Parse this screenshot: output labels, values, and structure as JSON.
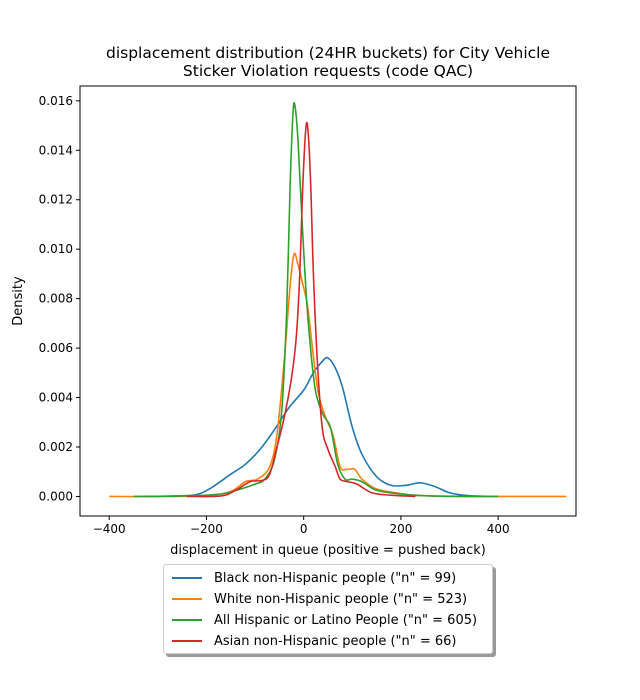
{
  "chart_data": {
    "type": "line",
    "title_line1": "displacement distribution (24HR buckets) for City Vehicle",
    "title_line2": "Sticker Violation requests (code QAC)",
    "xlabel": "displacement in queue (positive = pushed back)",
    "ylabel": "Density",
    "xlim": [
      -460,
      560
    ],
    "ylim": [
      -0.00079,
      0.0166
    ],
    "xticks": [
      -400,
      -200,
      0,
      200,
      400
    ],
    "xtick_labels": [
      "−400",
      "−200",
      "0",
      "200",
      "400"
    ],
    "yticks": [
      0.0,
      0.002,
      0.004,
      0.006,
      0.008,
      0.01,
      0.012,
      0.014,
      0.016
    ],
    "ytick_labels": [
      "0.000",
      "0.002",
      "0.004",
      "0.006",
      "0.008",
      "0.010",
      "0.012",
      "0.014",
      "0.016"
    ],
    "legend_position": "below",
    "series": [
      {
        "name": "Black non-Hispanic people (\"n\" = 99)",
        "color": "#1f77b4",
        "points": [
          [
            -330,
            0
          ],
          [
            -260,
            2e-05
          ],
          [
            -220,
            8e-05
          ],
          [
            -190,
            0.00035
          ],
          [
            -150,
            0.0009
          ],
          [
            -120,
            0.0013
          ],
          [
            -90,
            0.0019
          ],
          [
            -60,
            0.0027
          ],
          [
            -30,
            0.0036
          ],
          [
            0,
            0.0043
          ],
          [
            20,
            0.005
          ],
          [
            40,
            0.0055
          ],
          [
            50,
            0.0056
          ],
          [
            65,
            0.0052
          ],
          [
            80,
            0.0044
          ],
          [
            100,
            0.0028
          ],
          [
            120,
            0.0017
          ],
          [
            150,
            0.0008
          ],
          [
            180,
            0.00045
          ],
          [
            210,
            0.00045
          ],
          [
            240,
            0.00055
          ],
          [
            270,
            0.0004
          ],
          [
            300,
            0.00015
          ],
          [
            340,
            3e-05
          ],
          [
            400,
            0
          ]
        ]
      },
      {
        "name": "White non-Hispanic people (\"n\" = 523)",
        "color": "#ff7f0e",
        "points": [
          [
            -400,
            0
          ],
          [
            -300,
            0
          ],
          [
            -200,
            3e-05
          ],
          [
            -150,
            0.0002
          ],
          [
            -120,
            0.0006
          ],
          [
            -95,
            0.0007
          ],
          [
            -70,
            0.0012
          ],
          [
            -55,
            0.0025
          ],
          [
            -40,
            0.0055
          ],
          [
            -28,
            0.0085
          ],
          [
            -20,
            0.0098
          ],
          [
            -12,
            0.0094
          ],
          [
            -2,
            0.0086
          ],
          [
            8,
            0.0077
          ],
          [
            18,
            0.006
          ],
          [
            30,
            0.0042
          ],
          [
            45,
            0.0032
          ],
          [
            60,
            0.0025
          ],
          [
            75,
            0.0012
          ],
          [
            90,
            0.0011
          ],
          [
            105,
            0.0011
          ],
          [
            120,
            0.0007
          ],
          [
            150,
            0.0003
          ],
          [
            190,
            0.00015
          ],
          [
            230,
            5e-05
          ],
          [
            300,
            0
          ],
          [
            400,
            0
          ],
          [
            540,
            0
          ]
        ]
      },
      {
        "name": "All Hispanic or Latino People (\"n\" = 605)",
        "color": "#2ca02c",
        "points": [
          [
            -350,
            0
          ],
          [
            -250,
            2e-05
          ],
          [
            -170,
            0.0001
          ],
          [
            -130,
            0.0003
          ],
          [
            -100,
            0.0005
          ],
          [
            -80,
            0.0007
          ],
          [
            -60,
            0.0015
          ],
          [
            -45,
            0.0035
          ],
          [
            -35,
            0.0075
          ],
          [
            -28,
            0.0125
          ],
          [
            -22,
            0.0155
          ],
          [
            -18,
            0.0158
          ],
          [
            -12,
            0.0145
          ],
          [
            -5,
            0.0118
          ],
          [
            5,
            0.0082
          ],
          [
            15,
            0.0058
          ],
          [
            25,
            0.0042
          ],
          [
            40,
            0.0033
          ],
          [
            55,
            0.0028
          ],
          [
            70,
            0.0013
          ],
          [
            85,
            0.0007
          ],
          [
            100,
            0.0007
          ],
          [
            120,
            0.0006
          ],
          [
            150,
            0.00025
          ],
          [
            200,
            0.0001
          ],
          [
            260,
            2e-05
          ],
          [
            400,
            0
          ]
        ]
      },
      {
        "name": "Asian non-Hispanic people (\"n\" = 66)",
        "color": "#d62728",
        "points": [
          [
            -240,
            0
          ],
          [
            -170,
            2e-05
          ],
          [
            -140,
            0.00025
          ],
          [
            -110,
            0.0006
          ],
          [
            -85,
            0.00065
          ],
          [
            -70,
            0.0009
          ],
          [
            -55,
            0.002
          ],
          [
            -40,
            0.0032
          ],
          [
            -25,
            0.0048
          ],
          [
            -15,
            0.0065
          ],
          [
            -8,
            0.009
          ],
          [
            -2,
            0.0125
          ],
          [
            5,
            0.015
          ],
          [
            10,
            0.0145
          ],
          [
            15,
            0.0123
          ],
          [
            20,
            0.009
          ],
          [
            28,
            0.0055
          ],
          [
            38,
            0.0028
          ],
          [
            50,
            0.0019
          ],
          [
            65,
            0.0012
          ],
          [
            75,
            0.0007
          ],
          [
            90,
            0.0006
          ],
          [
            110,
            0.0005
          ],
          [
            140,
            0.00015
          ],
          [
            180,
            5e-05
          ],
          [
            230,
            0
          ]
        ]
      }
    ]
  }
}
